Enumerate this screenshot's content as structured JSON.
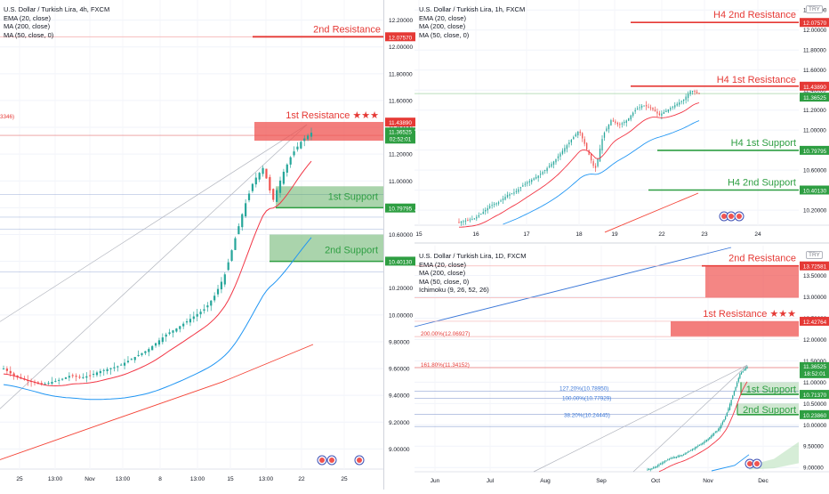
{
  "colors": {
    "red": "#e53935",
    "green": "#2e9e42",
    "support_fill": "#43a047",
    "resistance_fill": "#ef5350",
    "ema": "#f23645",
    "ma200": "#f44336",
    "ma50": "#2196f3",
    "candle_up": "#26a69a",
    "candle_down": "#ef5350"
  },
  "left": {
    "title": "U.S. Dollar / Turkish Lira, 4h, FXCM",
    "indicators": [
      "EMA (20, close)",
      "MA (200, close)",
      "MA (50, close, 0)"
    ],
    "currency": "TRY",
    "yaxis": [
      "12.20000",
      "12.00000",
      "11.80000",
      "11.60000",
      "11.40000",
      "11.20000",
      "11.00000",
      "10.80000",
      "10.60000",
      "10.40000",
      "10.20000",
      "10.00000",
      "9.80000",
      "9.60000",
      "9.40000",
      "9.20000",
      "9.00000"
    ],
    "xaxis": [
      "25",
      "13:00",
      "Nov",
      "13:00",
      "8",
      "13:00",
      "15",
      "13:00",
      "22",
      "25"
    ],
    "labels": {
      "r2": "2nd Resistance",
      "r1": "1st Resistance ★★★",
      "s1": "1st Support",
      "s2": "2nd Support",
      "clipped": "3346)"
    },
    "price_tags": {
      "r2": "12.07570",
      "r1": "11.43890",
      "last": "11.36525",
      "timer": "02:52:01",
      "s1": "10.79795",
      "s2": "10.40130"
    }
  },
  "tr": {
    "title": "U.S. Dollar / Turkish Lira, 1h, FXCM",
    "indicators": [
      "EMA (20, close)",
      "MA (200, close)",
      "MA (50, close, 0)"
    ],
    "currency": "TRY",
    "yaxis": [
      "12.20000",
      "12.00000",
      "11.80000",
      "11.60000",
      "11.40000",
      "11.20000",
      "11.00000",
      "10.80000",
      "10.60000",
      "10.40000",
      "10.20000"
    ],
    "xaxis": [
      "15",
      "16",
      "17",
      "18",
      "19",
      "22",
      "23",
      "24"
    ],
    "labels": {
      "r2": "H4 2nd Resistance",
      "r1": "H4 1st Resistance",
      "s1": "H4 1st Support",
      "s2": "H4 2nd Support"
    },
    "price_tags": {
      "r2": "12.07570",
      "r1": "11.43890",
      "last": "11.36525",
      "s1": "10.79795",
      "s2": "10.40130"
    }
  },
  "br": {
    "title": "U.S. Dollar / Turkish Lira, 1D, FXCM",
    "indicators": [
      "EMA (20, close)",
      "MA (200, close)",
      "MA (50, close, 0)",
      "Ichimoku (9, 26, 52, 26)"
    ],
    "currency": "TRY",
    "yaxis": [
      "13.50000",
      "13.00000",
      "12.50000",
      "12.00000",
      "11.50000",
      "11.00000",
      "10.50000",
      "10.00000",
      "9.50000",
      "9.00000"
    ],
    "xaxis": [
      "Jun",
      "Jul",
      "Aug",
      "Sep",
      "Oct",
      "Nov",
      "Dec"
    ],
    "labels": {
      "r2": "2nd Resistance",
      "r1": "1st Resistance ★★★",
      "s1": "1st Support",
      "s2": "2nd Support",
      "fib200": "200.00%(12.06927)",
      "fib161": "161.80%(11.34152)",
      "fib127": "127.20%(10.78950)",
      "fib100": "100.00%(10.77929)",
      "fib38": "38.20%(10.24445)"
    },
    "price_tags": {
      "r2": "13.72581",
      "r1": "12.42764",
      "last": "11.36525",
      "timer": "18:52:01",
      "s1": "10.71370",
      "s2": "10.23860"
    }
  },
  "chart_data": [
    {
      "type": "candlestick",
      "title": "U.S. Dollar / Turkish Lira, 4h, FXCM",
      "x": [
        "25",
        "13:00",
        "Nov",
        "13:00",
        "8",
        "13:00",
        "15",
        "13:00",
        "22",
        "25"
      ],
      "ylim": [
        8.85,
        12.35
      ],
      "levels": {
        "2nd Resistance": 12.0757,
        "1st Resistance": 11.4389,
        "1st Support": 10.79795,
        "2nd Support": 10.4013
      },
      "last_price": 11.36525,
      "close_path": [
        9.6,
        9.55,
        9.52,
        9.5,
        9.48,
        9.5,
        9.52,
        9.55,
        9.53,
        9.55,
        9.58,
        9.6,
        9.62,
        9.66,
        9.7,
        9.74,
        9.8,
        9.86,
        9.9,
        9.95,
        10.0,
        10.05,
        10.15,
        10.3,
        10.55,
        10.8,
        11.0,
        11.1,
        10.85,
        11.05,
        11.2,
        11.3,
        11.36
      ]
    },
    {
      "type": "candlestick",
      "title": "U.S. Dollar / Turkish Lira, 1h, FXCM",
      "x": [
        "15",
        "16",
        "17",
        "18",
        "19",
        "22",
        "23",
        "24"
      ],
      "ylim": [
        10.05,
        12.3
      ],
      "levels": {
        "H4 2nd Resistance": 12.0757,
        "H4 1st Resistance": 11.4389,
        "H4 1st Support": 10.79795,
        "H4 2nd Support": 10.4013
      },
      "last_price": 11.36525,
      "close_path": [
        10.08,
        10.1,
        10.12,
        10.18,
        10.25,
        10.28,
        10.35,
        10.38,
        10.45,
        10.5,
        10.55,
        10.62,
        10.7,
        10.8,
        10.9,
        11.0,
        10.8,
        10.6,
        10.95,
        11.1,
        11.05,
        11.1,
        11.2,
        11.25,
        11.22,
        11.15,
        11.2,
        11.25,
        11.3,
        11.4,
        11.36
      ]
    },
    {
      "type": "candlestick",
      "title": "U.S. Dollar / Turkish Lira, 1D, FXCM",
      "x": [
        "Jun",
        "Jul",
        "Aug",
        "Sep",
        "Oct",
        "Nov",
        "Dec"
      ],
      "ylim": [
        8.9,
        14.2
      ],
      "levels": {
        "2nd Resistance": 13.72581,
        "1st Resistance": 12.42764,
        "1st Support": 10.7137,
        "2nd Support": 10.2386
      },
      "fibonacci": {
        "200.00%": 12.06927,
        "161.80%": 11.34152,
        "127.20%": 10.7895,
        "100.00%": 10.77929,
        "38.20%": 10.24445
      },
      "last_price": 11.36525,
      "close_path": [
        8.95,
        9.0,
        9.1,
        9.2,
        9.25,
        9.3,
        9.4,
        9.5,
        9.6,
        9.75,
        9.9,
        10.2,
        10.7,
        11.2,
        11.36
      ]
    }
  ]
}
